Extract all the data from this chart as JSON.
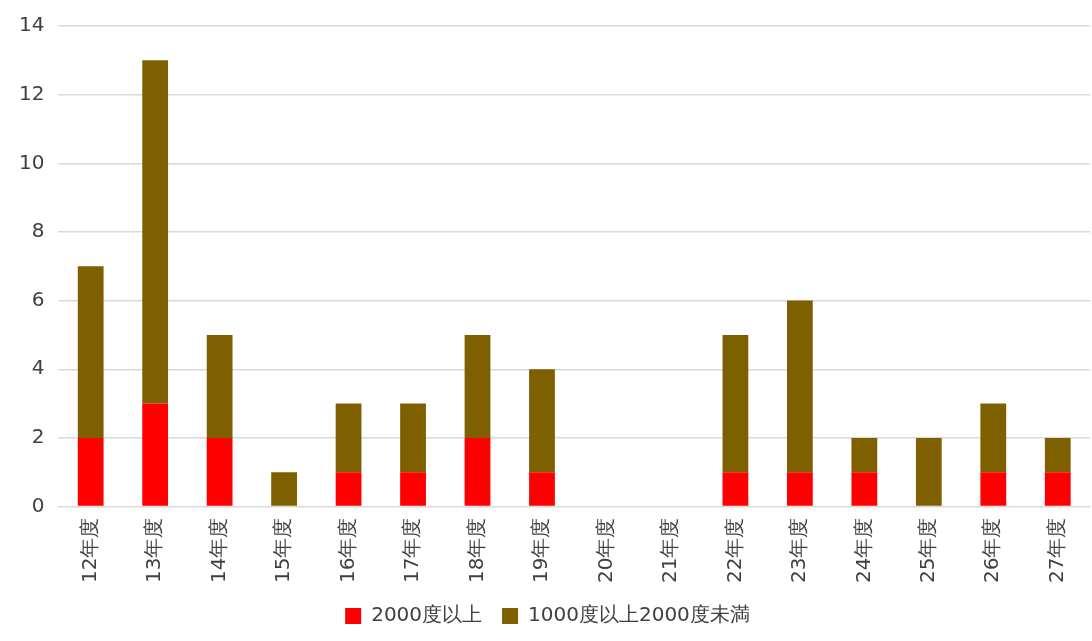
{
  "chart_data": {
    "type": "bar",
    "stacked": true,
    "categories": [
      "12年度",
      "13年度",
      "14年度",
      "15年度",
      "16年度",
      "17年度",
      "18年度",
      "19年度",
      "20年度",
      "21年度",
      "22年度",
      "23年度",
      "24年度",
      "25年度",
      "26年度",
      "27年度"
    ],
    "series": [
      {
        "name": "2000度以上",
        "color": "#ff0000",
        "values": [
          2,
          3,
          2,
          0,
          1,
          1,
          2,
          1,
          0,
          0,
          1,
          1,
          1,
          0,
          1,
          1
        ]
      },
      {
        "name": "1000度以上2000度未満",
        "color": "#7f6000",
        "values": [
          5,
          10,
          3,
          1,
          2,
          2,
          3,
          3,
          0,
          0,
          4,
          5,
          1,
          2,
          2,
          1
        ]
      }
    ],
    "ylim": [
      0,
      14
    ],
    "yticks": [
      0,
      2,
      4,
      6,
      8,
      10,
      12,
      14
    ],
    "grid": "y",
    "legend": "bottom"
  }
}
